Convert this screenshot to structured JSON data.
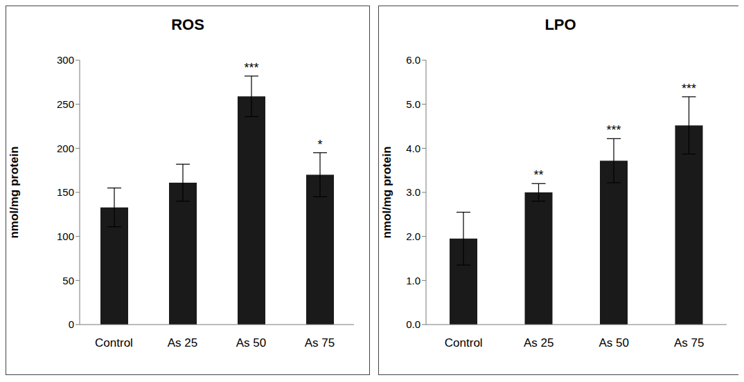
{
  "chart_data": [
    {
      "type": "bar",
      "title": "ROS",
      "y_label": "nmol/mg protein",
      "categories": [
        "Control",
        "As 25",
        "As 50",
        "As 75"
      ],
      "values": [
        133,
        161,
        259,
        170
      ],
      "errors": [
        22,
        21,
        23,
        25
      ],
      "significance": [
        null,
        null,
        "***",
        "*"
      ],
      "color": "#1a1a1a",
      "ylim": [
        0,
        300
      ],
      "yticks": [
        0,
        50,
        100,
        150,
        200,
        250,
        300
      ]
    },
    {
      "type": "bar",
      "title": "LPO",
      "y_label": "nmol/mg protein",
      "categories": [
        "Control",
        "As 25",
        "As 50",
        "As 75"
      ],
      "values": [
        1.95,
        3.0,
        3.72,
        4.52
      ],
      "errors": [
        0.6,
        0.2,
        0.5,
        0.65
      ],
      "significance": [
        null,
        "**",
        "***",
        "***"
      ],
      "color": "#1a1a1a",
      "ylim": [
        0,
        6
      ],
      "yticks": [
        {
          "value": 0,
          "label": "0.0"
        },
        {
          "value": 1,
          "label": "1.0"
        },
        {
          "value": 2,
          "label": "2.0"
        },
        {
          "value": 3,
          "label": "3.0"
        },
        {
          "value": 4,
          "label": "4.0"
        },
        {
          "value": 5,
          "label": "5.0"
        },
        {
          "value": 6,
          "label": "6.0"
        }
      ]
    }
  ]
}
